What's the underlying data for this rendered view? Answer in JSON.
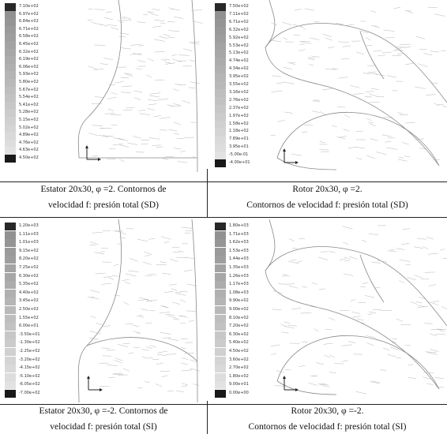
{
  "figure": {
    "panels": [
      {
        "id": "estator-sd",
        "legend": [
          "7.10e+02",
          "6.97e+02",
          "6.84e+02",
          "6.71e+02",
          "6.58e+02",
          "6.45e+02",
          "6.32e+02",
          "6.19e+02",
          "6.06e+02",
          "5.93e+02",
          "5.80e+02",
          "5.67e+02",
          "5.54e+02",
          "5.41e+02",
          "5.28e+02",
          "5.15e+02",
          "5.02e+02",
          "4.89e+02",
          "4.76e+02",
          "4.63e+02",
          "4.50e+02"
        ],
        "caption": [
          "Estator 20x30, φ =2. Contornos de",
          "velocidad f: presión total (SD)"
        ]
      },
      {
        "id": "rotor-sd",
        "legend": [
          "7.50e+02",
          "7.11e+02",
          "6.71e+02",
          "6.32e+02",
          "5.92e+02",
          "5.53e+02",
          "5.13e+02",
          "4.74e+02",
          "4.34e+02",
          "3.95e+02",
          "3.55e+02",
          "3.16e+02",
          "2.76e+02",
          "2.37e+02",
          "1.97e+02",
          "1.58e+02",
          "1.18e+02",
          "7.89e+01",
          "3.95e+01",
          "-5.00e-01",
          "-4.00e+01"
        ],
        "caption": [
          "Rotor 20x30, φ =2.",
          "Contornos de velocidad f: presión total (SD)"
        ]
      },
      {
        "id": "estator-si",
        "legend": [
          "1.20e+03",
          "1.11e+03",
          "1.01e+03",
          "9.15e+02",
          "8.20e+02",
          "7.25e+02",
          "6.30e+02",
          "5.35e+02",
          "4.40e+02",
          "3.45e+02",
          "2.50e+02",
          "1.55e+02",
          "6.00e+01",
          "-3.50e+01",
          "-1.30e+02",
          "-2.25e+02",
          "-3.20e+02",
          "-4.15e+02",
          "-5.10e+02",
          "-6.05e+02",
          "-7.00e+02"
        ],
        "caption": [
          "Estator 20x30, φ =-2. Contornos de",
          "velocidad f: presión total (SI)"
        ]
      },
      {
        "id": "rotor-si",
        "legend": [
          "1.80e+03",
          "1.71e+03",
          "1.62e+03",
          "1.53e+03",
          "1.44e+03",
          "1.35e+03",
          "1.26e+03",
          "1.17e+03",
          "1.08e+03",
          "9.90e+02",
          "9.00e+02",
          "8.10e+02",
          "7.20e+02",
          "6.30e+02",
          "5.40e+02",
          "4.50e+02",
          "3.60e+02",
          "2.70e+02",
          "1.80e+02",
          "9.00e+01",
          "0.00e+00"
        ],
        "caption": [
          "Rotor 20x30, φ =-2.",
          "Contornos de velocidad f: presión total (SI)"
        ]
      }
    ]
  }
}
